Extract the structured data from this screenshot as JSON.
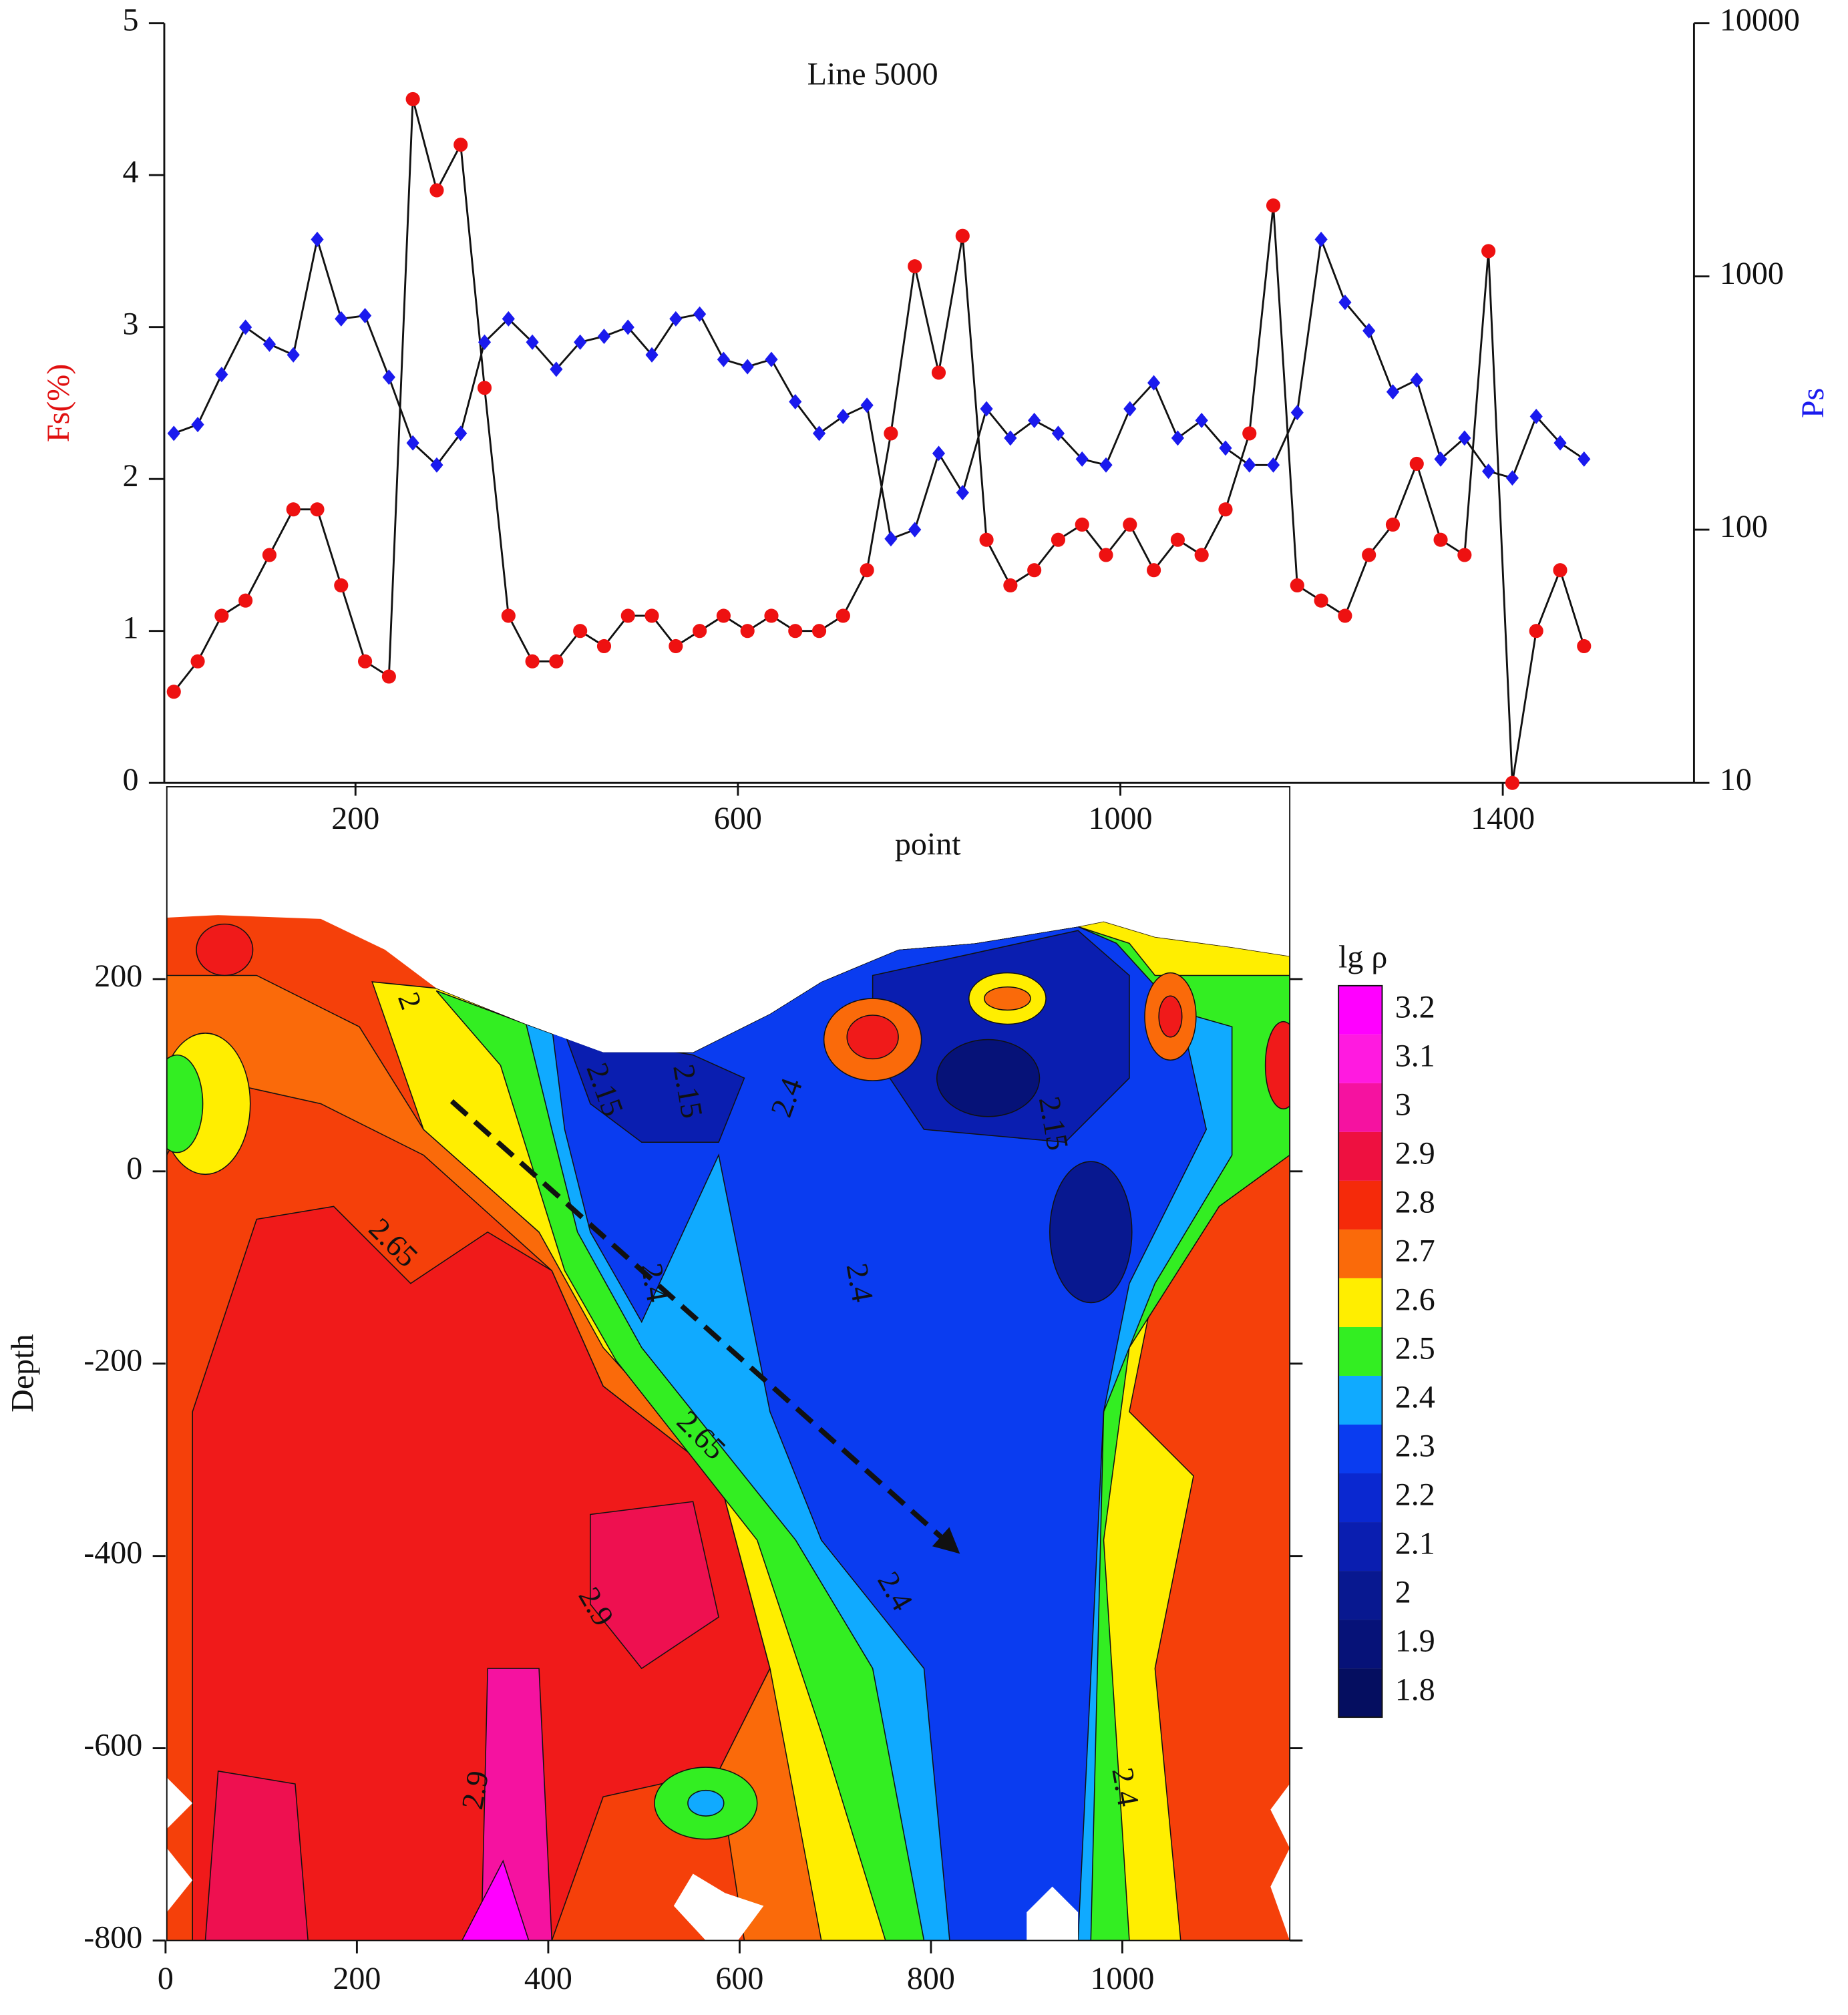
{
  "chart_data": [
    {
      "type": "line",
      "title": "Line 5000",
      "xlabel": "point",
      "ylabel": "Fs(%)",
      "y2label": "Ps",
      "x": [
        10,
        35,
        60,
        85,
        110,
        135,
        160,
        185,
        210,
        235,
        260,
        285,
        310,
        335,
        360,
        385,
        410,
        435,
        460,
        485,
        510,
        535,
        560,
        585,
        610,
        635,
        660,
        685,
        710,
        735,
        760,
        785,
        810,
        835,
        860,
        885,
        910,
        935,
        960,
        985,
        1010,
        1035,
        1060,
        1085,
        1110,
        1135,
        1160,
        1185,
        1210,
        1235,
        1260,
        1285,
        1310,
        1335,
        1360,
        1385,
        1410,
        1435,
        1460,
        1485
      ],
      "xlim": [
        0,
        1600
      ],
      "xticks": [
        200,
        600,
        1000,
        1400
      ],
      "ylim": [
        0,
        5
      ],
      "yticks": [
        0,
        1,
        2,
        3,
        4,
        5
      ],
      "y2lim": [
        10,
        10000
      ],
      "y2ticks": [
        10,
        100,
        1000,
        10000
      ],
      "y2log": true,
      "series": [
        {
          "color": "#ee1111",
          "marker": "circle",
          "values": [
            0.6,
            0.8,
            1.1,
            1.2,
            1.5,
            1.8,
            1.8,
            1.3,
            0.8,
            0.7,
            4.5,
            3.9,
            4.2,
            2.6,
            1.1,
            0.8,
            0.8,
            1.0,
            0.9,
            1.1,
            1.1,
            0.9,
            1.0,
            1.1,
            1.0,
            1.1,
            1.0,
            1.0,
            1.1,
            1.4,
            2.3,
            3.4,
            2.7,
            3.6,
            1.6,
            1.3,
            1.4,
            1.6,
            1.7,
            1.5,
            1.7,
            1.4,
            1.6,
            1.5,
            1.8,
            2.3,
            3.8,
            1.3,
            1.2,
            1.1,
            1.5,
            1.7,
            2.1,
            1.6,
            1.5,
            3.5,
            0,
            1.0,
            1.4,
            0.9
          ]
        },
        {
          "color": "#1a1aee",
          "marker": "diamond",
          "axis": "y2",
          "values": [
            240,
            260,
            410,
            630,
            540,
            490,
            1400,
            680,
            700,
            400,
            220,
            180,
            240,
            550,
            680,
            550,
            430,
            550,
            580,
            630,
            490,
            680,
            710,
            470,
            440,
            470,
            320,
            240,
            280,
            310,
            92,
            100,
            200,
            140,
            300,
            230,
            270,
            240,
            190,
            180,
            300,
            380,
            230,
            270,
            210,
            180,
            180,
            290,
            1400,
            790,
            610,
            350,
            390,
            190,
            230,
            170,
            160,
            280,
            220,
            190
          ]
        }
      ]
    },
    {
      "type": "contour",
      "ylabel": "Depth",
      "xlim": [
        0,
        1175
      ],
      "xticks": [
        0,
        200,
        400,
        600,
        800,
        1000
      ],
      "ylim": [
        -800,
        400
      ],
      "yticks": [
        -800,
        -600,
        -400,
        -200,
        0,
        200
      ],
      "colorbar": {
        "title": "lg ρ",
        "levels": [
          3.2,
          3.1,
          3,
          2.9,
          2.8,
          2.7,
          2.6,
          2.5,
          2.4,
          2.3,
          2.2,
          2.1,
          2,
          1.9,
          1.8
        ],
        "colors": [
          "#ff00ff",
          "#ff1ae0",
          "#f512a0",
          "#ee1040",
          "#f52a0a",
          "#fa6a0a",
          "#ffee00",
          "#33ee22",
          "#10aaff",
          "#0a3cf0",
          "#0a28d0",
          "#0a1eb0",
          "#081890",
          "#061278",
          "#050e60"
        ]
      },
      "annotations": [
        "2",
        "2.15",
        "2.15",
        "2.4",
        "2.15",
        "2.65",
        "2.4",
        "2.4",
        "2.65",
        "2.9",
        "2.4",
        "2.9",
        "2.4"
      ]
    }
  ]
}
